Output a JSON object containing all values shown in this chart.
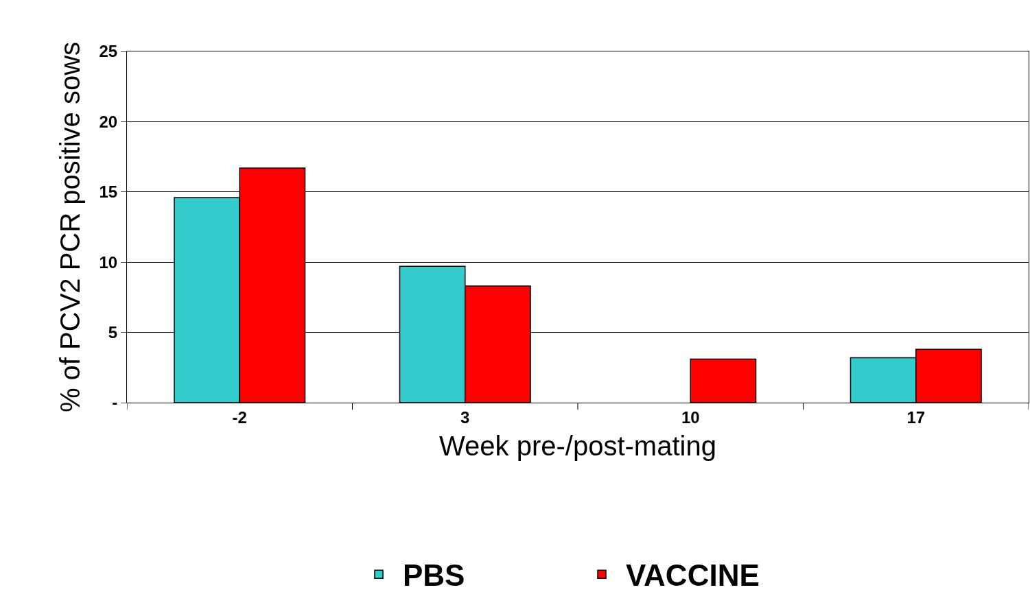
{
  "chart_data": {
    "type": "bar",
    "xlabel": "Week pre-/post-mating",
    "ylabel": "% of PCV2 PCR positive sows",
    "categories": [
      "-2",
      "3",
      "10",
      "17"
    ],
    "series": [
      {
        "name": "PBS",
        "color": "#33cccc",
        "values": [
          14.6,
          9.7,
          null,
          3.2
        ]
      },
      {
        "name": "VACCINE",
        "color": "#ff0000",
        "values": [
          16.7,
          8.3,
          3.1,
          3.8
        ]
      }
    ],
    "ylim": [
      0,
      25
    ],
    "yticks": [
      {
        "value": 0,
        "label": "-"
      },
      5,
      10,
      15,
      20,
      25
    ],
    "grid": "y",
    "legend": "bottom"
  }
}
